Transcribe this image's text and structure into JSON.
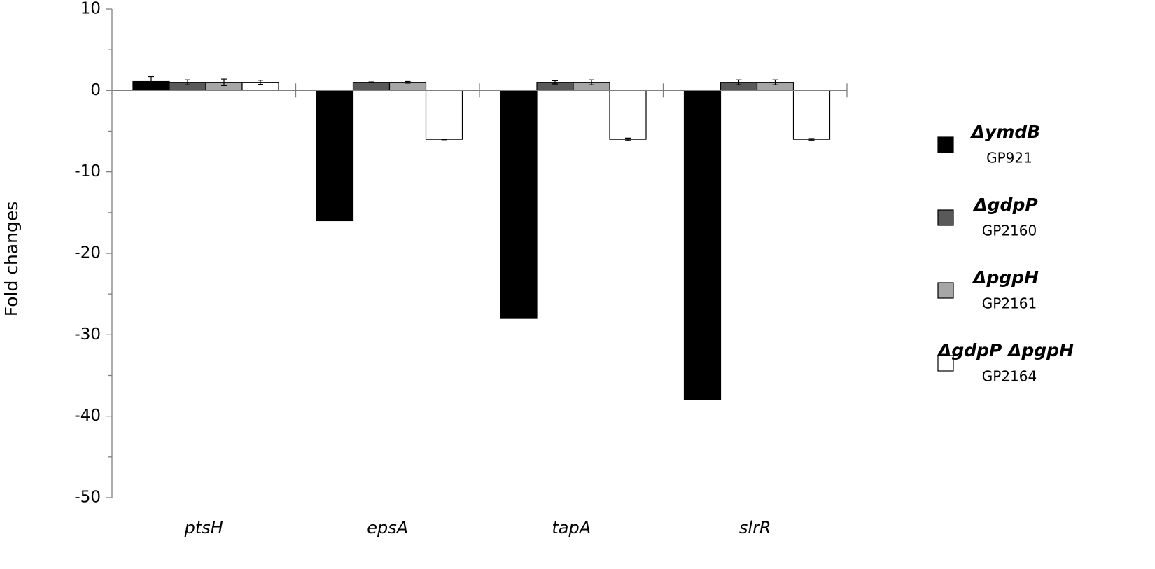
{
  "chart_data": {
    "type": "bar",
    "y_label": "Fold changes",
    "categories": [
      "ptsH",
      "epsA",
      "tapA",
      "slrR"
    ],
    "series": [
      {
        "name": "ΔymdB",
        "strain": "GP921",
        "color": "#000000",
        "values": [
          1.1,
          -16,
          -28,
          -38
        ],
        "errors": [
          0.6,
          null,
          null,
          null
        ]
      },
      {
        "name": "ΔgdpP",
        "strain": "GP2160",
        "color": "#595959",
        "values": [
          1,
          1,
          1,
          1
        ],
        "errors": [
          0.3,
          0.05,
          0.2,
          0.3
        ]
      },
      {
        "name": "ΔpgpH",
        "strain": "GP2161",
        "color": "#a6a6a6",
        "values": [
          1,
          1,
          1,
          1
        ],
        "errors": [
          0.4,
          0.1,
          0.3,
          0.3
        ]
      },
      {
        "name": "ΔgdpP ΔpgpH",
        "strain": "GP2164",
        "color": "#ffffff",
        "values": [
          1,
          -6,
          -6,
          -6
        ],
        "errors": [
          0.25,
          0.05,
          0.15,
          0.1
        ]
      }
    ],
    "ylim": [
      -50,
      10
    ],
    "yticks": [
      -50,
      -40,
      -30,
      -20,
      -10,
      0,
      10
    ],
    "minor_yticks": [
      -45,
      -35,
      -25,
      -15,
      -5,
      5
    ],
    "grid": false,
    "legend": "right"
  }
}
